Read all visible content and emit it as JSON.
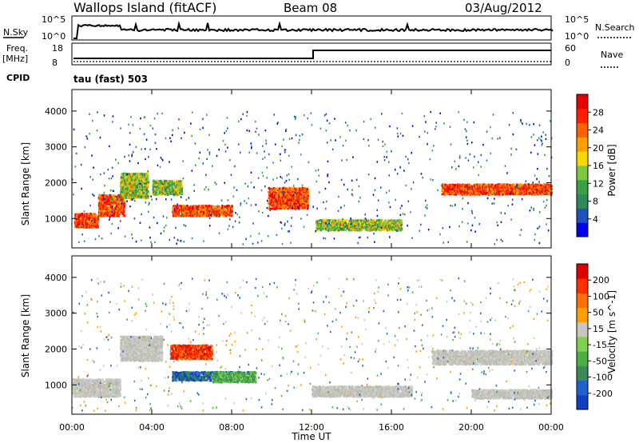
{
  "header": {
    "title": "Wallops Island (fitACF)",
    "beam": "Beam 08",
    "date": "03/Aug/2012"
  },
  "aux_panels": {
    "nsky_label": "N.Sky",
    "nsky_ticks": [
      "10^5",
      "10^0"
    ],
    "nsearch_label": "N.Search",
    "nsearch_ticks": [
      "10^5",
      "10^0"
    ],
    "freq_label": "Freq.",
    "freq_unit": "[MHz]",
    "freq_ticks": [
      "18",
      "8"
    ],
    "nave_label": "Nave",
    "nave_ticks": [
      "60",
      "0"
    ],
    "cpid_label": "CPID",
    "cpid_value": "tau (fast) 503"
  },
  "chart_data": [
    {
      "type": "heatmap",
      "name": "power",
      "ylabel": "Slant Range [km]",
      "ylim": [
        180,
        4600
      ],
      "xlim": [
        0,
        24
      ],
      "yticks": [
        "4000",
        "3000",
        "2000",
        "1000"
      ],
      "ytick_values": [
        4000,
        3000,
        2000,
        1000
      ],
      "colorbar_label": "Power [dB]",
      "colorbar_ticks": [
        "28",
        "24",
        "20",
        "16",
        "12",
        "8",
        "4"
      ],
      "colorbar_colors": [
        "#0000ee",
        "#2050c0",
        "#2e8b57",
        "#3aa048",
        "#7dc840",
        "#f8d800",
        "#ffa000",
        "#ff6000",
        "#ff2000",
        "#e80000"
      ],
      "regions": [
        {
          "t0": 0.1,
          "t1": 1.3,
          "r0": 780,
          "r1": 1180,
          "level": "high"
        },
        {
          "t0": 1.3,
          "t1": 2.6,
          "r0": 1100,
          "r1": 1700,
          "level": "high"
        },
        {
          "t0": 2.4,
          "t1": 3.8,
          "r0": 1600,
          "r1": 2300,
          "level": "mid"
        },
        {
          "t0": 4.0,
          "t1": 5.5,
          "r0": 1700,
          "r1": 2100,
          "level": "mid"
        },
        {
          "t0": 5.0,
          "t1": 8.0,
          "r0": 1100,
          "r1": 1400,
          "level": "high"
        },
        {
          "t0": 9.8,
          "t1": 11.8,
          "r0": 1300,
          "r1": 1900,
          "level": "high"
        },
        {
          "t0": 12.2,
          "t1": 16.5,
          "r0": 700,
          "r1": 1000,
          "level": "mid"
        },
        {
          "t0": 18.5,
          "t1": 24.0,
          "r0": 1700,
          "r1": 2000,
          "level": "high"
        }
      ]
    },
    {
      "type": "heatmap",
      "name": "velocity",
      "ylabel": "Slant Range [km]",
      "ylim": [
        180,
        4600
      ],
      "xlim": [
        0,
        24
      ],
      "yticks": [
        "4000",
        "3000",
        "2000",
        "1000"
      ],
      "ytick_values": [
        4000,
        3000,
        2000,
        1000
      ],
      "colorbar_label": "Velocity [m s^-1]",
      "colorbar_ticks": [
        "200",
        "100",
        "50",
        "15",
        "-15",
        "-50",
        "-100",
        "-200"
      ],
      "colorbar_colors": [
        "#1040c0",
        "#2060d0",
        "#3a8a5a",
        "#4cb040",
        "#7dd050",
        "#c8c8c0",
        "#ffa000",
        "#ff7000",
        "#ff3000",
        "#e00000"
      ],
      "regions": [
        {
          "t0": 0.0,
          "t1": 2.4,
          "r0": 700,
          "r1": 1200,
          "level": "gray"
        },
        {
          "t0": 2.4,
          "t1": 4.5,
          "r0": 1700,
          "r1": 2400,
          "level": "gray"
        },
        {
          "t0": 4.9,
          "t1": 7.0,
          "r0": 1750,
          "r1": 2150,
          "level": "red"
        },
        {
          "t0": 5.0,
          "t1": 8.0,
          "r0": 1150,
          "r1": 1400,
          "level": "blue"
        },
        {
          "t0": 7.0,
          "t1": 9.2,
          "r0": 1100,
          "r1": 1400,
          "level": "green"
        },
        {
          "t0": 12.0,
          "t1": 17.0,
          "r0": 700,
          "r1": 1000,
          "level": "gray"
        },
        {
          "t0": 18.0,
          "t1": 24.0,
          "r0": 1600,
          "r1": 2000,
          "level": "gray"
        },
        {
          "t0": 20.0,
          "t1": 24.0,
          "r0": 650,
          "r1": 900,
          "level": "gray"
        }
      ]
    }
  ],
  "xaxis": {
    "label": "Time UT",
    "ticks": [
      "00:00",
      "04:00",
      "08:00",
      "12:00",
      "16:00",
      "20:00",
      "00:00"
    ],
    "tick_values": [
      0,
      4,
      8,
      12,
      16,
      20,
      24
    ]
  }
}
